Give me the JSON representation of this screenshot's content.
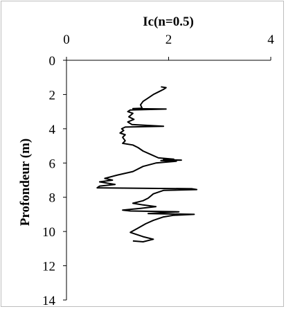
{
  "chart_data": {
    "type": "line",
    "title": "Ic(n=0.5)",
    "xlabel": "Ic(n=0.5)",
    "ylabel": "Profondeur (m)",
    "xlim": [
      0,
      4
    ],
    "ylim": [
      0,
      14
    ],
    "y_reversed": true,
    "x_axis_position": "top",
    "x_ticks": [
      "0",
      "2",
      "4"
    ],
    "y_ticks": [
      "0",
      "2",
      "4",
      "6",
      "8",
      "10",
      "12",
      "14"
    ],
    "grid": false,
    "series": [
      {
        "color": "#000000",
        "points": [
          [
            1.85,
            1.55
          ],
          [
            1.95,
            1.6
          ],
          [
            1.9,
            1.7
          ],
          [
            1.8,
            1.85
          ],
          [
            1.7,
            2.0
          ],
          [
            1.6,
            2.2
          ],
          [
            1.5,
            2.4
          ],
          [
            1.45,
            2.6
          ],
          [
            1.48,
            2.8
          ],
          [
            1.3,
            2.82
          ],
          [
            1.95,
            2.85
          ],
          [
            1.25,
            2.9
          ],
          [
            1.2,
            3.0
          ],
          [
            1.3,
            3.1
          ],
          [
            1.22,
            3.3
          ],
          [
            1.32,
            3.45
          ],
          [
            1.2,
            3.6
          ],
          [
            1.28,
            3.75
          ],
          [
            1.9,
            3.85
          ],
          [
            1.15,
            3.9
          ],
          [
            1.08,
            4.0
          ],
          [
            1.12,
            4.1
          ],
          [
            1.05,
            4.25
          ],
          [
            1.15,
            4.35
          ],
          [
            1.1,
            4.5
          ],
          [
            1.15,
            4.7
          ],
          [
            1.1,
            4.85
          ],
          [
            1.3,
            4.95
          ],
          [
            1.4,
            5.1
          ],
          [
            1.5,
            5.3
          ],
          [
            1.65,
            5.5
          ],
          [
            1.8,
            5.7
          ],
          [
            2.1,
            5.78
          ],
          [
            1.9,
            5.8
          ],
          [
            2.25,
            5.83
          ],
          [
            1.85,
            5.86
          ],
          [
            2.15,
            5.9
          ],
          [
            1.75,
            6.0
          ],
          [
            1.5,
            6.2
          ],
          [
            1.3,
            6.5
          ],
          [
            1.0,
            6.7
          ],
          [
            0.75,
            6.9
          ],
          [
            0.9,
            7.0
          ],
          [
            0.65,
            7.1
          ],
          [
            0.95,
            7.25
          ],
          [
            0.65,
            7.35
          ],
          [
            0.6,
            7.45
          ],
          [
            2.45,
            7.5
          ],
          [
            2.55,
            7.55
          ],
          [
            1.9,
            7.6
          ],
          [
            1.7,
            7.8
          ],
          [
            1.6,
            8.05
          ],
          [
            1.5,
            8.2
          ],
          [
            1.3,
            8.35
          ],
          [
            1.5,
            8.45
          ],
          [
            1.75,
            8.55
          ],
          [
            1.45,
            8.65
          ],
          [
            1.1,
            8.75
          ],
          [
            1.25,
            8.8
          ],
          [
            2.2,
            8.85
          ],
          [
            1.9,
            8.9
          ],
          [
            1.6,
            8.95
          ],
          [
            2.5,
            9.0
          ],
          [
            2.1,
            9.05
          ],
          [
            1.9,
            9.15
          ],
          [
            1.7,
            9.35
          ],
          [
            1.55,
            9.55
          ],
          [
            1.4,
            9.8
          ],
          [
            1.25,
            10.05
          ],
          [
            1.5,
            10.3
          ],
          [
            1.7,
            10.45
          ],
          [
            1.5,
            10.6
          ],
          [
            1.3,
            10.55
          ]
        ]
      }
    ]
  }
}
